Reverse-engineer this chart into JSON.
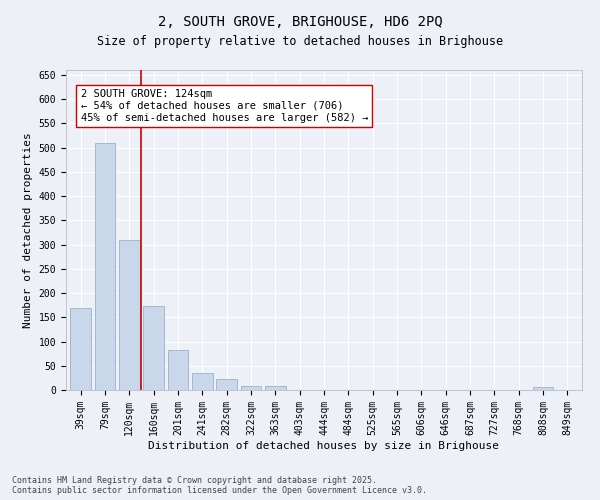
{
  "title": "2, SOUTH GROVE, BRIGHOUSE, HD6 2PQ",
  "subtitle": "Size of property relative to detached houses in Brighouse",
  "xlabel": "Distribution of detached houses by size in Brighouse",
  "ylabel": "Number of detached properties",
  "bar_color": "#c8d8ea",
  "bar_edgecolor": "#9ab0c8",
  "background_color": "#eef0f8",
  "grid_color": "#ffffff",
  "categories": [
    "39sqm",
    "79sqm",
    "120sqm",
    "160sqm",
    "201sqm",
    "241sqm",
    "282sqm",
    "322sqm",
    "363sqm",
    "403sqm",
    "444sqm",
    "484sqm",
    "525sqm",
    "565sqm",
    "606sqm",
    "646sqm",
    "687sqm",
    "727sqm",
    "768sqm",
    "808sqm",
    "849sqm"
  ],
  "values": [
    170,
    510,
    310,
    173,
    82,
    35,
    22,
    8,
    8,
    0,
    0,
    0,
    0,
    0,
    0,
    0,
    0,
    0,
    0,
    7,
    0
  ],
  "ylim": [
    0,
    660
  ],
  "yticks": [
    0,
    50,
    100,
    150,
    200,
    250,
    300,
    350,
    400,
    450,
    500,
    550,
    600,
    650
  ],
  "vline_color": "#cc0000",
  "annotation_text_line1": "2 SOUTH GROVE: 124sqm",
  "annotation_text_line2": "← 54% of detached houses are smaller (706)",
  "annotation_text_line3": "45% of semi-detached houses are larger (582) →",
  "annotation_fontsize": 7.5,
  "footer_line1": "Contains HM Land Registry data © Crown copyright and database right 2025.",
  "footer_line2": "Contains public sector information licensed under the Open Government Licence v3.0.",
  "title_fontsize": 10,
  "subtitle_fontsize": 8.5,
  "xlabel_fontsize": 8,
  "ylabel_fontsize": 8,
  "tick_fontsize": 7
}
